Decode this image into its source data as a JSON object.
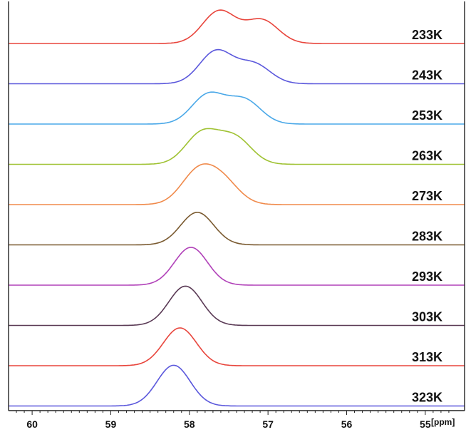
{
  "chart_data": {
    "type": "line",
    "title": "",
    "xlabel": "",
    "ylabel": "",
    "x_unit_label": "[ppm]",
    "xlim": [
      60.3,
      54.5
    ],
    "x_reversed": true,
    "x_ticks": [
      60,
      59,
      58,
      57,
      56,
      55
    ],
    "x_tick_labels": [
      "60",
      "59",
      "58",
      "57",
      "56",
      "55"
    ],
    "stacked": true,
    "series": [
      {
        "name": "233K",
        "color": "#e8453c",
        "peaks": [
          {
            "center": 57.62,
            "height": 1.0
          },
          {
            "center": 57.08,
            "height": 0.72
          }
        ]
      },
      {
        "name": "243K",
        "color": "#5b58dc",
        "peaks": [
          {
            "center": 57.66,
            "height": 1.0
          },
          {
            "center": 57.18,
            "height": 0.6
          }
        ]
      },
      {
        "name": "253K",
        "color": "#4aa8e8",
        "peaks": [
          {
            "center": 57.76,
            "height": 0.9
          },
          {
            "center": 57.3,
            "height": 0.73
          }
        ]
      },
      {
        "name": "263K",
        "color": "#9fc232",
        "peaks": [
          {
            "center": 57.84,
            "height": 0.95
          },
          {
            "center": 57.42,
            "height": 0.8
          }
        ]
      },
      {
        "name": "273K",
        "color": "#f08a4b",
        "peaks": [
          {
            "center": 57.9,
            "height": 0.95
          },
          {
            "center": 57.58,
            "height": 0.7
          }
        ]
      },
      {
        "name": "283K",
        "color": "#7a5a30",
        "peaks": [
          {
            "center": 57.9,
            "height": 1.0
          }
        ]
      },
      {
        "name": "293K",
        "color": "#b040b8",
        "peaks": [
          {
            "center": 57.98,
            "height": 1.3
          }
        ]
      },
      {
        "name": "303K",
        "color": "#5a3a55",
        "peaks": [
          {
            "center": 58.05,
            "height": 1.35
          }
        ]
      },
      {
        "name": "313K",
        "color": "#e8453c",
        "peaks": [
          {
            "center": 58.12,
            "height": 1.3
          }
        ]
      },
      {
        "name": "323K",
        "color": "#5b58dc",
        "peaks": [
          {
            "center": 58.2,
            "height": 1.4
          }
        ]
      }
    ]
  }
}
